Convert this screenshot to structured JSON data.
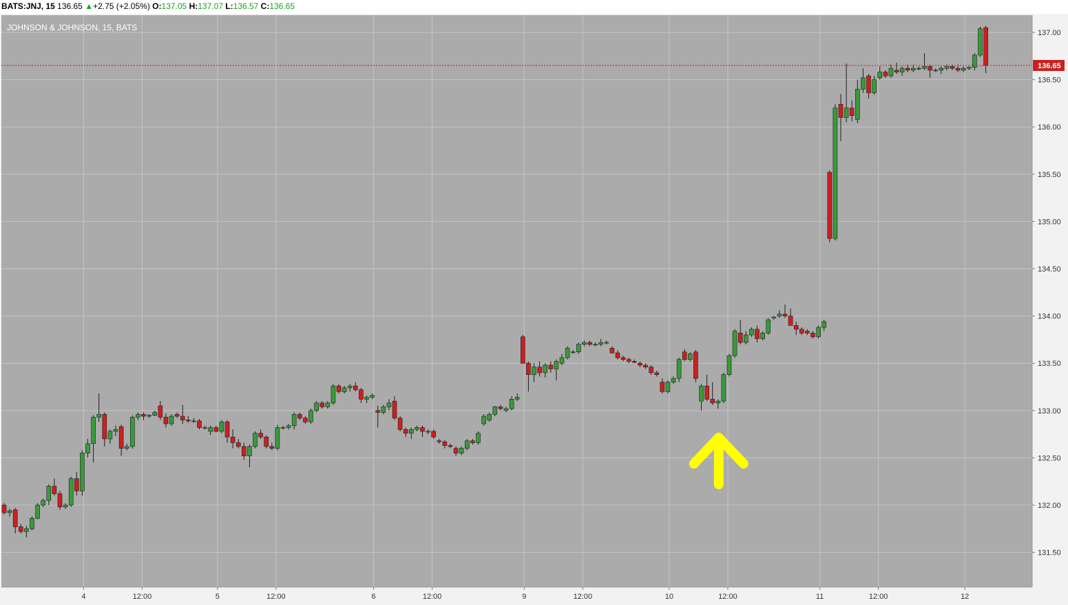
{
  "header": {
    "symbol": "BATS:JNJ, 15",
    "last": "136.65",
    "change": "+2.75 (+2.05%)",
    "o_label": "O:",
    "o_value": "137.05",
    "h_label": "H:",
    "h_value": "137.07",
    "l_label": "L:",
    "l_value": "136.57",
    "c_label": "C:",
    "c_value": "136.65"
  },
  "colors": {
    "background": "#ababab",
    "up": "#3a9a3a",
    "down": "#cc2020",
    "grid": "#c4c4c4",
    "price_line": "#cc1f1f",
    "arrow": "#ffff00"
  },
  "icons": {
    "change_direction": "triangle-up-icon",
    "annotation": "yellow-arrow-up-icon"
  },
  "chart_data": {
    "type": "candlestick",
    "title": "JOHNSON & JOHNSON, 15, BATS",
    "ylim": [
      131.3,
      137.3
    ],
    "y_ticks": [
      "131.50",
      "132.00",
      "132.50",
      "133.00",
      "133.50",
      "134.00",
      "134.50",
      "135.00",
      "135.50",
      "136.00",
      "136.50",
      "137.00"
    ],
    "x_ticks": [
      "4",
      "12:00",
      "5",
      "12:00",
      "6",
      "12:00",
      "9",
      "12:00",
      "10",
      "12:00",
      "11",
      "12:00",
      "12"
    ],
    "current_price": "136.65",
    "annotation": {
      "type": "arrow-up",
      "bar_index": 128
    },
    "gaps_after_index": [
      25,
      51,
      77,
      103,
      129,
      155
    ],
    "candles": [
      [
        132.0,
        132.02,
        131.9,
        131.92
      ],
      [
        131.92,
        131.96,
        131.88,
        131.94
      ],
      [
        131.95,
        131.97,
        131.7,
        131.77
      ],
      [
        131.77,
        131.8,
        131.7,
        131.72
      ],
      [
        131.72,
        131.78,
        131.66,
        131.75
      ],
      [
        131.75,
        131.88,
        131.73,
        131.86
      ],
      [
        131.86,
        132.02,
        131.85,
        132.0
      ],
      [
        132.0,
        132.07,
        131.98,
        132.05
      ],
      [
        132.05,
        132.22,
        132.0,
        132.2
      ],
      [
        132.2,
        132.28,
        132.1,
        132.12
      ],
      [
        132.12,
        132.15,
        131.95,
        131.98
      ],
      [
        131.98,
        132.02,
        131.96,
        132.0
      ],
      [
        132.0,
        132.3,
        131.98,
        132.28
      ],
      [
        132.28,
        132.35,
        132.1,
        132.15
      ],
      [
        132.15,
        132.58,
        132.1,
        132.55
      ],
      [
        132.55,
        132.7,
        132.5,
        132.65
      ],
      [
        132.65,
        132.95,
        132.45,
        132.93
      ],
      [
        132.93,
        133.18,
        132.88,
        132.96
      ],
      [
        132.96,
        132.98,
        132.62,
        132.7
      ],
      [
        132.7,
        132.8,
        132.65,
        132.78
      ],
      [
        132.78,
        132.84,
        132.73,
        132.8
      ],
      [
        132.83,
        132.85,
        132.52,
        132.6
      ],
      [
        132.6,
        132.65,
        132.58,
        132.62
      ],
      [
        132.62,
        132.95,
        132.6,
        132.93
      ],
      [
        132.93,
        132.98,
        132.9,
        132.96
      ],
      [
        132.96,
        132.98,
        132.9,
        132.94
      ],
      [
        132.94,
        132.96,
        132.92,
        132.95
      ],
      [
        132.95,
        133.0,
        132.94,
        132.98
      ],
      [
        133.05,
        133.1,
        132.9,
        132.93
      ],
      [
        132.93,
        132.97,
        132.82,
        132.86
      ],
      [
        132.86,
        132.96,
        132.84,
        132.94
      ],
      [
        132.96,
        132.98,
        132.92,
        132.94
      ],
      [
        132.94,
        133.06,
        132.86,
        132.9
      ],
      [
        132.9,
        132.94,
        132.87,
        132.89
      ],
      [
        132.89,
        132.92,
        132.87,
        132.89
      ],
      [
        132.89,
        132.91,
        132.8,
        132.82
      ],
      [
        132.82,
        132.84,
        132.8,
        132.82
      ],
      [
        132.78,
        132.84,
        132.74,
        132.82
      ],
      [
        132.82,
        132.84,
        132.77,
        132.78
      ],
      [
        132.78,
        132.9,
        132.76,
        132.88
      ],
      [
        132.88,
        132.9,
        132.66,
        132.72
      ],
      [
        132.72,
        132.8,
        132.6,
        132.66
      ],
      [
        132.66,
        132.7,
        132.6,
        132.62
      ],
      [
        132.62,
        132.66,
        132.48,
        132.52
      ],
      [
        132.52,
        132.64,
        132.4,
        132.62
      ],
      [
        132.62,
        132.78,
        132.6,
        132.76
      ],
      [
        132.76,
        132.8,
        132.7,
        132.72
      ],
      [
        132.72,
        132.74,
        132.6,
        132.62
      ],
      [
        132.62,
        132.66,
        132.58,
        132.6
      ],
      [
        132.6,
        132.85,
        132.58,
        132.82
      ],
      [
        132.82,
        132.84,
        132.8,
        132.82
      ],
      [
        132.82,
        132.86,
        132.8,
        132.84
      ],
      [
        132.84,
        132.98,
        132.8,
        132.96
      ],
      [
        132.96,
        132.98,
        132.9,
        132.92
      ],
      [
        132.92,
        132.94,
        132.86,
        132.88
      ],
      [
        132.88,
        133.02,
        132.86,
        133.0
      ],
      [
        133.0,
        133.1,
        132.98,
        133.08
      ],
      [
        133.08,
        133.1,
        133.02,
        133.04
      ],
      [
        133.04,
        133.1,
        133.02,
        133.08
      ],
      [
        133.08,
        133.28,
        133.06,
        133.26
      ],
      [
        133.26,
        133.28,
        133.18,
        133.2
      ],
      [
        133.2,
        133.26,
        133.18,
        133.24
      ],
      [
        133.24,
        133.28,
        133.2,
        133.26
      ],
      [
        133.26,
        133.3,
        133.2,
        133.22
      ],
      [
        133.22,
        133.24,
        133.08,
        133.12
      ],
      [
        133.12,
        133.16,
        133.08,
        133.14
      ],
      [
        133.14,
        133.18,
        133.12,
        133.16
      ],
      [
        133.0,
        133.05,
        132.82,
        132.98
      ],
      [
        132.98,
        133.06,
        132.96,
        133.04
      ],
      [
        133.04,
        133.12,
        133.0,
        133.08
      ],
      [
        133.1,
        133.15,
        132.9,
        132.92
      ],
      [
        132.92,
        132.94,
        132.78,
        132.8
      ],
      [
        132.8,
        132.82,
        132.72,
        132.76
      ],
      [
        132.76,
        132.82,
        132.7,
        132.8
      ],
      [
        132.8,
        132.84,
        132.78,
        132.82
      ],
      [
        132.82,
        132.84,
        132.72,
        132.78
      ],
      [
        132.78,
        132.8,
        132.75,
        132.78
      ],
      [
        132.78,
        132.8,
        132.7,
        132.72
      ],
      [
        132.68,
        132.7,
        132.65,
        132.67
      ],
      [
        132.67,
        132.69,
        132.6,
        132.63
      ],
      [
        132.63,
        132.65,
        132.6,
        132.62
      ],
      [
        132.6,
        132.62,
        132.52,
        132.55
      ],
      [
        132.55,
        132.62,
        132.53,
        132.6
      ],
      [
        132.6,
        132.7,
        132.58,
        132.68
      ],
      [
        132.68,
        132.7,
        132.64,
        132.66
      ],
      [
        132.66,
        132.78,
        132.64,
        132.76
      ],
      [
        132.86,
        132.96,
        132.84,
        132.94
      ],
      [
        132.9,
        132.98,
        132.88,
        132.96
      ],
      [
        132.96,
        133.05,
        132.94,
        133.04
      ],
      [
        133.04,
        133.06,
        133.0,
        133.02
      ],
      [
        133.0,
        133.04,
        132.98,
        133.02
      ],
      [
        133.02,
        133.15,
        133.0,
        133.12
      ],
      [
        133.12,
        133.18,
        133.1,
        133.14
      ],
      [
        133.78,
        133.8,
        133.5,
        133.5
      ],
      [
        133.5,
        133.52,
        133.2,
        133.38
      ],
      [
        133.38,
        133.5,
        133.3,
        133.46
      ],
      [
        133.46,
        133.52,
        133.36,
        133.4
      ],
      [
        133.4,
        133.5,
        133.35,
        133.48
      ],
      [
        133.48,
        133.52,
        133.4,
        133.44
      ],
      [
        133.44,
        133.54,
        133.32,
        133.52
      ],
      [
        133.5,
        133.6,
        133.48,
        133.56
      ],
      [
        133.56,
        133.68,
        133.54,
        133.66
      ],
      [
        133.62,
        133.64,
        133.6,
        133.62
      ],
      [
        133.62,
        133.72,
        133.6,
        133.7
      ],
      [
        133.7,
        133.74,
        133.68,
        133.72
      ],
      [
        133.72,
        133.74,
        133.68,
        133.7
      ],
      [
        133.7,
        133.72,
        133.68,
        133.7
      ],
      [
        133.7,
        133.76,
        133.68,
        133.72
      ],
      [
        133.72,
        133.74,
        133.7,
        133.72
      ],
      [
        133.66,
        133.68,
        133.6,
        133.61
      ],
      [
        133.61,
        133.64,
        133.54,
        133.56
      ],
      [
        133.56,
        133.58,
        133.52,
        133.54
      ],
      [
        133.54,
        133.56,
        133.5,
        133.52
      ],
      [
        133.52,
        133.54,
        133.5,
        133.51
      ],
      [
        133.5,
        133.52,
        133.46,
        133.48
      ],
      [
        133.48,
        133.5,
        133.44,
        133.46
      ],
      [
        133.46,
        133.48,
        133.38,
        133.4
      ],
      [
        133.4,
        133.42,
        133.36,
        133.38
      ],
      [
        133.3,
        133.34,
        133.18,
        133.2
      ],
      [
        133.2,
        133.32,
        133.18,
        133.3
      ],
      [
        133.3,
        133.36,
        133.28,
        133.34
      ],
      [
        133.34,
        133.56,
        133.3,
        133.54
      ],
      [
        133.62,
        133.65,
        133.52,
        133.54
      ],
      [
        133.54,
        133.62,
        133.52,
        133.6
      ],
      [
        133.62,
        133.64,
        133.3,
        133.34
      ],
      [
        133.1,
        133.28,
        133.0,
        133.26
      ],
      [
        133.26,
        133.38,
        133.1,
        133.12
      ],
      [
        133.12,
        133.3,
        133.06,
        133.08
      ],
      [
        133.08,
        133.12,
        133.02,
        133.1
      ],
      [
        133.1,
        133.4,
        133.08,
        133.38
      ],
      [
        133.38,
        133.6,
        133.36,
        133.58
      ],
      [
        133.58,
        133.86,
        133.56,
        133.84
      ],
      [
        133.82,
        133.96,
        133.7,
        133.72
      ],
      [
        133.72,
        133.84,
        133.7,
        133.8
      ],
      [
        133.8,
        133.88,
        133.78,
        133.86
      ],
      [
        133.86,
        133.9,
        133.72,
        133.76
      ],
      [
        133.76,
        133.84,
        133.74,
        133.82
      ],
      [
        133.82,
        133.98,
        133.8,
        133.96
      ],
      [
        133.98,
        134.0,
        133.96,
        133.99
      ],
      [
        134.0,
        134.06,
        133.98,
        134.02
      ],
      [
        134.02,
        134.12,
        133.98,
        134.0
      ],
      [
        134.0,
        134.08,
        133.9,
        133.9
      ],
      [
        133.9,
        133.94,
        133.8,
        133.86
      ],
      [
        133.86,
        133.88,
        133.8,
        133.82
      ],
      [
        133.84,
        133.86,
        133.8,
        133.82
      ],
      [
        133.82,
        133.84,
        133.76,
        133.78
      ],
      [
        133.78,
        133.9,
        133.76,
        133.88
      ],
      [
        133.88,
        133.96,
        133.84,
        133.94
      ],
      [
        135.52,
        135.54,
        134.78,
        134.82
      ],
      [
        134.82,
        136.24,
        134.8,
        136.2
      ],
      [
        136.24,
        136.35,
        135.85,
        136.1
      ],
      [
        136.1,
        136.67,
        136.05,
        136.2
      ],
      [
        136.2,
        136.28,
        136.06,
        136.12
      ],
      [
        136.08,
        136.5,
        136.04,
        136.4
      ],
      [
        136.4,
        136.62,
        136.36,
        136.52
      ],
      [
        136.54,
        136.56,
        136.3,
        136.36
      ],
      [
        136.36,
        136.54,
        136.34,
        136.5
      ],
      [
        136.52,
        136.64,
        136.5,
        136.58
      ],
      [
        136.58,
        136.6,
        136.52,
        136.54
      ],
      [
        136.54,
        136.66,
        136.52,
        136.62
      ],
      [
        136.6,
        136.68,
        136.56,
        136.58
      ],
      [
        136.58,
        136.64,
        136.54,
        136.62
      ],
      [
        136.62,
        136.66,
        136.58,
        136.6
      ],
      [
        136.6,
        136.66,
        136.58,
        136.62
      ],
      [
        136.62,
        136.64,
        136.6,
        136.62
      ],
      [
        136.62,
        136.78,
        136.6,
        136.64
      ],
      [
        136.64,
        136.66,
        136.52,
        136.6
      ],
      [
        136.6,
        136.62,
        136.58,
        136.6
      ],
      [
        136.6,
        136.64,
        136.56,
        136.62
      ],
      [
        136.62,
        136.66,
        136.6,
        136.64
      ],
      [
        136.64,
        136.66,
        136.6,
        136.62
      ],
      [
        136.62,
        136.66,
        136.58,
        136.6
      ],
      [
        136.6,
        136.64,
        136.58,
        136.62
      ],
      [
        136.62,
        136.64,
        136.6,
        136.63
      ],
      [
        136.63,
        136.78,
        136.6,
        136.76
      ],
      [
        136.76,
        137.06,
        136.74,
        137.04
      ],
      [
        137.05,
        137.07,
        136.57,
        136.65
      ]
    ]
  }
}
